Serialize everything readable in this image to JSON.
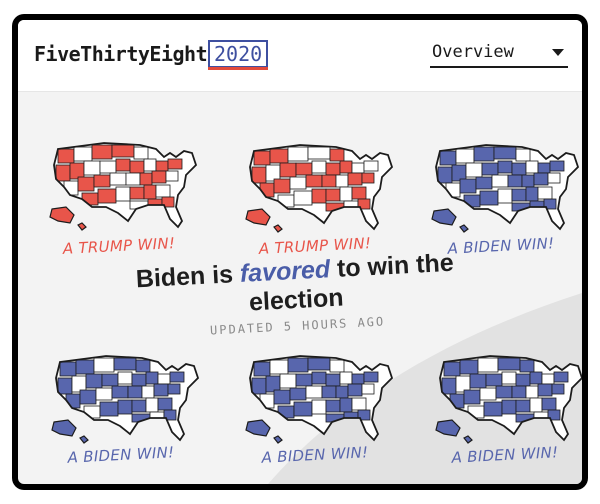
{
  "header": {
    "brand": "FiveThirtyEight",
    "year": "2020",
    "nav_label": "Overview"
  },
  "headline": {
    "prefix": "Biden is ",
    "emphasis": "favored",
    "suffix": " to win the election",
    "updated": "UPDATED 5 HOURS AGO"
  },
  "colors": {
    "trump": "#e8554a",
    "biden": "#5866ad",
    "map_stroke": "#1c1c1c",
    "swoosh": "#e2e2e2"
  },
  "scenarios": [
    {
      "caption": "A TRUMP WIN!",
      "winner": "trump"
    },
    {
      "caption": "A TRUMP WIN!",
      "winner": "trump"
    },
    {
      "caption": "A BIDEN WIN!",
      "winner": "biden"
    },
    {
      "caption": "A BIDEN WIN!",
      "winner": "biden"
    },
    {
      "caption": "A BIDEN WIN!",
      "winner": "biden"
    },
    {
      "caption": "A BIDEN WIN!",
      "winner": "biden"
    }
  ]
}
